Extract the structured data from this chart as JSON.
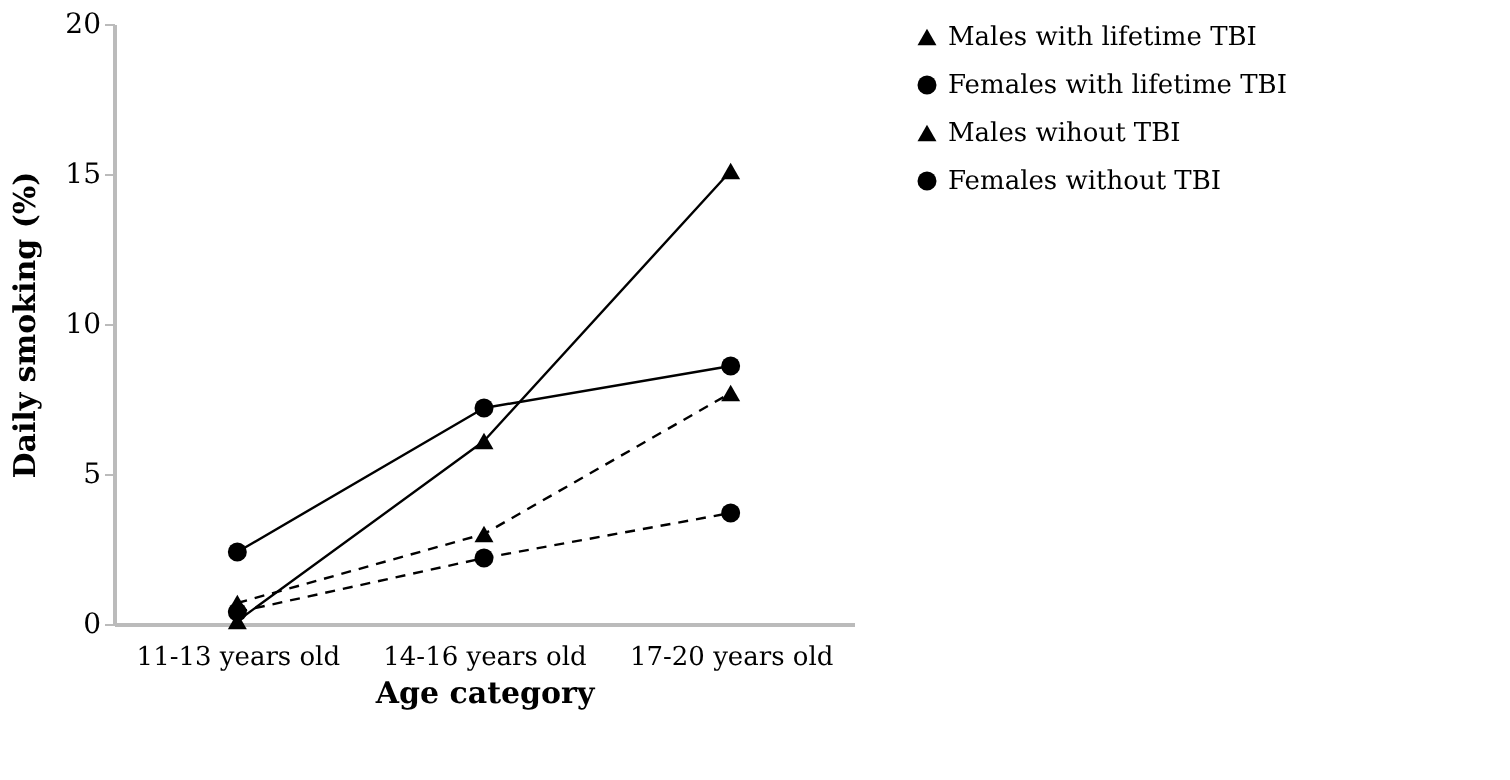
{
  "chart_data": {
    "type": "line",
    "xlabel": "Age category",
    "ylabel": "Daily smoking (%)",
    "categories": [
      "11-13 years old",
      "14-16 years old",
      "17-20 years old"
    ],
    "series": [
      {
        "name": "Males with lifetime TBI",
        "color": "#000000",
        "marker": "triangle",
        "line_style": "solid",
        "values": [
          0.1,
          6.1,
          15.1
        ]
      },
      {
        "name": "Females with lifetime TBI",
        "color": "#000000",
        "marker": "circle",
        "line_style": "solid",
        "values": [
          2.4,
          7.2,
          8.6
        ]
      },
      {
        "name": "Males wihout TBI",
        "color": "#000000",
        "marker": "triangle",
        "line_style": "dashed",
        "values": [
          0.7,
          3.0,
          7.7
        ]
      },
      {
        "name": "Females without TBI",
        "color": "#000000",
        "marker": "circle",
        "line_style": "dashed",
        "values": [
          0.4,
          2.2,
          3.7
        ]
      }
    ],
    "ylim": [
      0,
      20
    ],
    "yticks": [
      0,
      5,
      10,
      15,
      20
    ],
    "grid": false,
    "legend": "right"
  }
}
